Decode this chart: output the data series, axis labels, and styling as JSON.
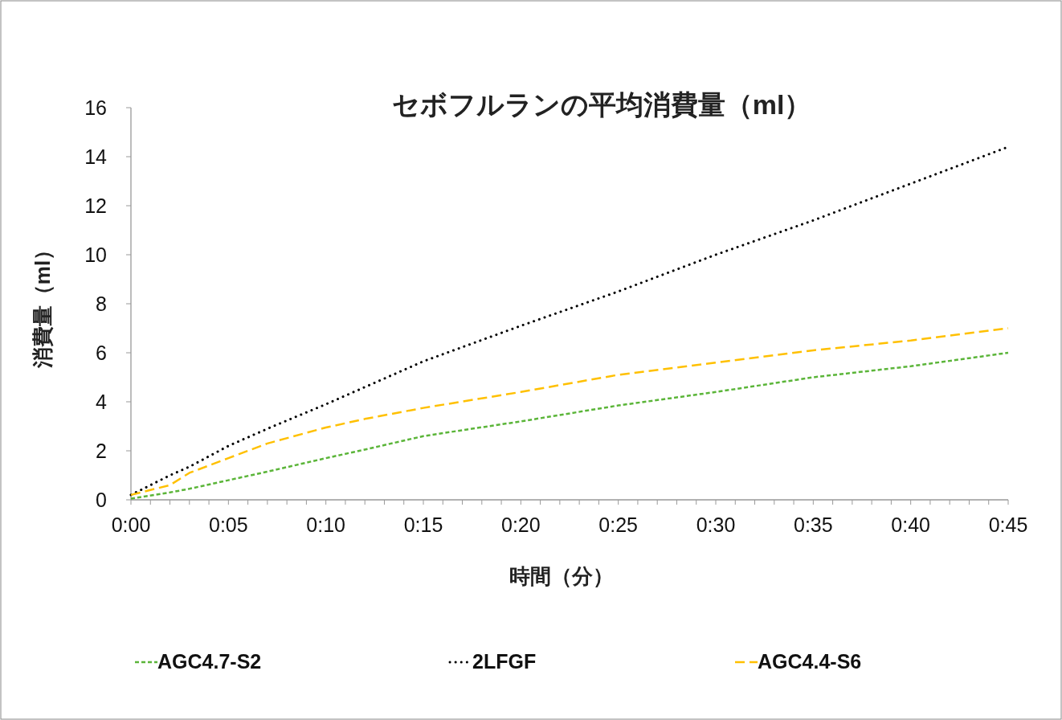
{
  "chart_data": {
    "type": "line",
    "title": "セボフルランの平均消費量（ml）",
    "xlabel": "時間（分）",
    "ylabel": "消費量（ml）",
    "x": [
      0,
      2,
      3,
      5,
      7,
      10,
      12,
      15,
      20,
      25,
      30,
      35,
      40,
      45
    ],
    "series": [
      {
        "name": "AGC4.7-S2",
        "color": "#5bb539",
        "line_style": "dashed",
        "values": [
          0.05,
          0.3,
          0.45,
          0.8,
          1.15,
          1.7,
          2.05,
          2.6,
          3.2,
          3.85,
          4.4,
          5.0,
          5.45,
          6.0
        ]
      },
      {
        "name": "2LFGF",
        "color": "#000000",
        "line_style": "dotted",
        "values": [
          0.2,
          1.0,
          1.35,
          2.2,
          2.9,
          3.9,
          4.6,
          5.65,
          7.1,
          8.5,
          10.0,
          11.4,
          12.9,
          14.4
        ]
      },
      {
        "name": "AGC4.4-S6",
        "color": "#ffc000",
        "line_style": "dashed",
        "values": [
          0.2,
          0.6,
          1.1,
          1.7,
          2.3,
          2.95,
          3.3,
          3.75,
          4.4,
          5.1,
          5.6,
          6.1,
          6.5,
          7.0
        ]
      }
    ],
    "xlim": [
      0,
      45
    ],
    "xticks": [
      {
        "value": 0,
        "label": "0:00"
      },
      {
        "value": 1,
        "label": null
      },
      {
        "value": 2,
        "label": null
      },
      {
        "value": 3,
        "label": null
      },
      {
        "value": 4,
        "label": null
      },
      {
        "value": 5,
        "label": "0:05"
      },
      {
        "value": 6,
        "label": null
      },
      {
        "value": 7,
        "label": null
      },
      {
        "value": 8,
        "label": null
      },
      {
        "value": 9,
        "label": null
      },
      {
        "value": 10,
        "label": "0:10"
      },
      {
        "value": 11,
        "label": null
      },
      {
        "value": 12,
        "label": null
      },
      {
        "value": 13,
        "label": null
      },
      {
        "value": 14,
        "label": null
      },
      {
        "value": 15,
        "label": "0:15"
      },
      {
        "value": 16,
        "label": null
      },
      {
        "value": 17,
        "label": null
      },
      {
        "value": 18,
        "label": null
      },
      {
        "value": 19,
        "label": null
      },
      {
        "value": 20,
        "label": "0:20"
      },
      {
        "value": 21,
        "label": null
      },
      {
        "value": 22,
        "label": null
      },
      {
        "value": 23,
        "label": null
      },
      {
        "value": 24,
        "label": null
      },
      {
        "value": 25,
        "label": "0:25"
      },
      {
        "value": 26,
        "label": null
      },
      {
        "value": 27,
        "label": null
      },
      {
        "value": 28,
        "label": null
      },
      {
        "value": 29,
        "label": null
      },
      {
        "value": 30,
        "label": "0:30"
      },
      {
        "value": 31,
        "label": null
      },
      {
        "value": 32,
        "label": null
      },
      {
        "value": 33,
        "label": null
      },
      {
        "value": 34,
        "label": null
      },
      {
        "value": 35,
        "label": "0:35"
      },
      {
        "value": 36,
        "label": null
      },
      {
        "value": 37,
        "label": null
      },
      {
        "value": 38,
        "label": null
      },
      {
        "value": 39,
        "label": null
      },
      {
        "value": 40,
        "label": "0:40"
      },
      {
        "value": 41,
        "label": null
      },
      {
        "value": 42,
        "label": null
      },
      {
        "value": 43,
        "label": null
      },
      {
        "value": 44,
        "label": null
      },
      {
        "value": 45,
        "label": "0:45"
      }
    ],
    "ylim": [
      0,
      16
    ],
    "yticks": [
      0,
      2,
      4,
      6,
      8,
      10,
      12,
      14,
      16
    ],
    "grid": false,
    "legend": "bottom"
  }
}
